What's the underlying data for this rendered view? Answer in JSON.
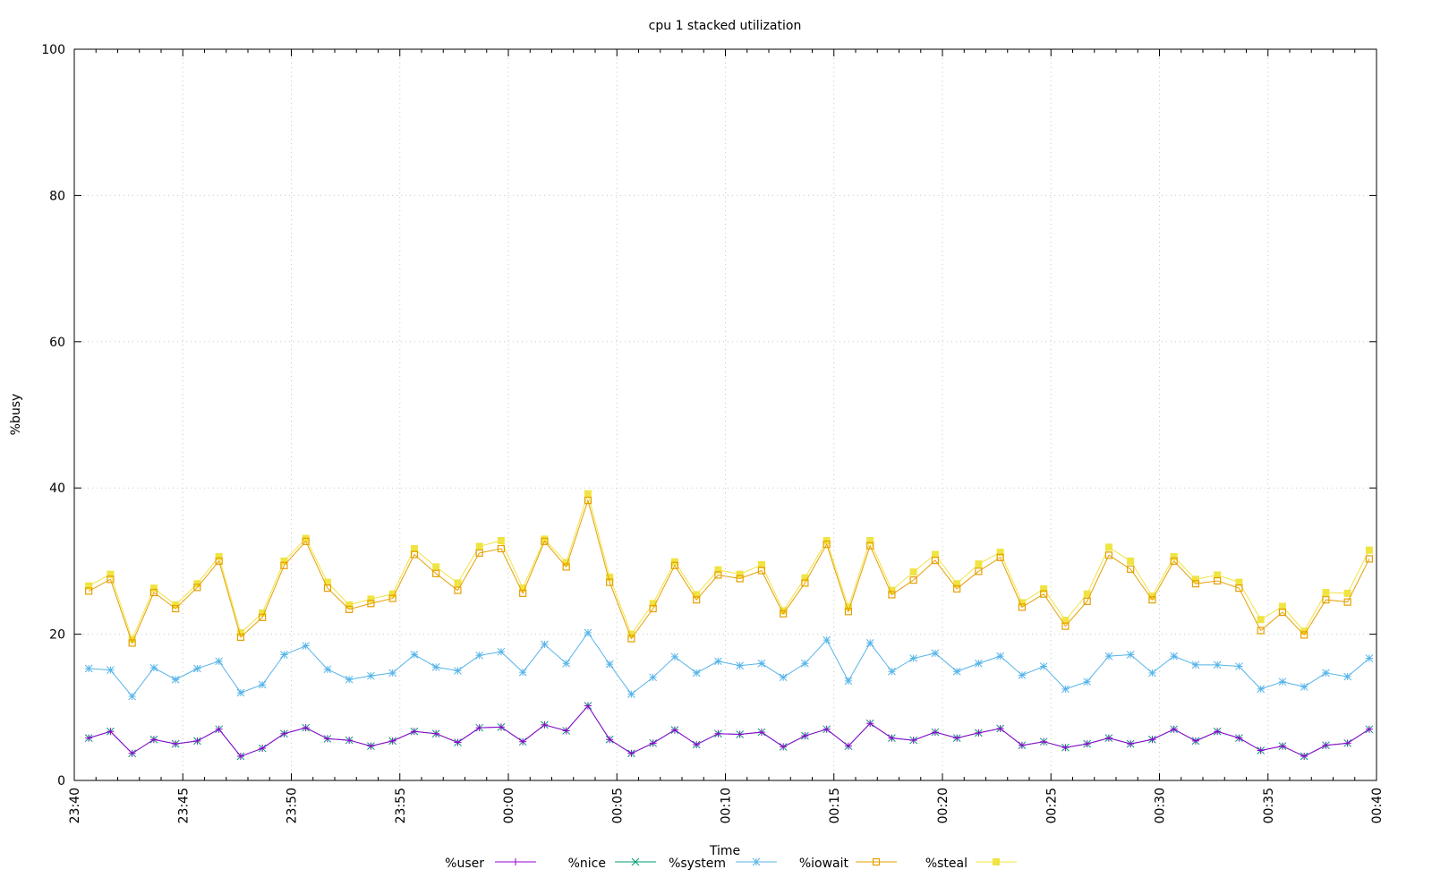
{
  "chart_data": {
    "type": "line",
    "title": "cpu 1 stacked utilization",
    "xlabel": "Time",
    "ylabel": "%busy",
    "ylim": [
      0,
      100
    ],
    "yticks": [
      "0",
      "20",
      "40",
      "60",
      "80",
      "100"
    ],
    "xlim_minutes": [
      0,
      60
    ],
    "xticks": [
      "23:40",
      "23:45",
      "23:50",
      "23:55",
      "00:00",
      "00:05",
      "00:10",
      "00:15",
      "00:20",
      "00:25",
      "00:30",
      "00:35",
      "00:40"
    ],
    "x_start": "23:40:40",
    "x_step_minutes": 1,
    "grid": true,
    "legend_position": "bottom",
    "stacked": true,
    "series": [
      {
        "name": "%user",
        "color": "#9400d3",
        "marker": "plus",
        "values": [
          5.8,
          6.7,
          3.7,
          5.6,
          5.0,
          5.4,
          7.0,
          3.3,
          4.4,
          6.4,
          7.2,
          5.7,
          5.5,
          4.7,
          5.4,
          6.7,
          6.4,
          5.2,
          7.2,
          7.3,
          5.3,
          7.6,
          6.8,
          10.2,
          5.6,
          3.7,
          5.1,
          6.9,
          4.9,
          6.4,
          6.3,
          6.6,
          4.6,
          6.1,
          7.0,
          4.7,
          7.8,
          5.8,
          5.5,
          6.6,
          5.8,
          6.5,
          7.1,
          4.8,
          5.3,
          4.5,
          5.0,
          5.8,
          5.0,
          5.6,
          7.0,
          5.4,
          6.7,
          5.8,
          4.1,
          4.7,
          3.3,
          4.8,
          5.1,
          7.0
        ]
      },
      {
        "name": "%nice",
        "color": "#009e73",
        "marker": "cross",
        "values": [
          5.8,
          6.7,
          3.7,
          5.6,
          5.0,
          5.4,
          7.0,
          3.3,
          4.4,
          6.4,
          7.2,
          5.7,
          5.5,
          4.7,
          5.4,
          6.7,
          6.4,
          5.2,
          7.2,
          7.3,
          5.3,
          7.6,
          6.8,
          10.2,
          5.6,
          3.7,
          5.1,
          6.9,
          4.9,
          6.4,
          6.3,
          6.6,
          4.6,
          6.1,
          7.0,
          4.7,
          7.8,
          5.8,
          5.5,
          6.6,
          5.8,
          6.5,
          7.1,
          4.8,
          5.3,
          4.5,
          5.0,
          5.8,
          5.0,
          5.6,
          7.0,
          5.4,
          6.7,
          5.8,
          4.1,
          4.7,
          3.3,
          4.8,
          5.1,
          7.0
        ]
      },
      {
        "name": "%system",
        "color": "#56b4e9",
        "marker": "star",
        "values": [
          15.3,
          15.1,
          11.5,
          15.4,
          13.8,
          15.3,
          16.3,
          12.0,
          13.1,
          17.2,
          18.4,
          15.2,
          13.8,
          14.3,
          14.7,
          17.2,
          15.5,
          15.0,
          17.1,
          17.6,
          14.8,
          18.6,
          16.0,
          20.2,
          15.9,
          11.8,
          14.1,
          16.9,
          14.7,
          16.3,
          15.7,
          16.0,
          14.1,
          16.0,
          19.2,
          13.6,
          18.8,
          14.9,
          16.7,
          17.4,
          14.9,
          16.0,
          17.0,
          14.4,
          15.6,
          12.5,
          13.5,
          17.0,
          17.2,
          14.7,
          17.0,
          15.8,
          15.8,
          15.6,
          12.5,
          13.5,
          12.8,
          14.7,
          14.2,
          16.7
        ]
      },
      {
        "name": "%iowait",
        "color": "#e69f00",
        "marker": "open-square",
        "values": [
          25.9,
          27.5,
          18.8,
          25.7,
          23.5,
          26.4,
          30.0,
          19.6,
          22.3,
          29.4,
          32.7,
          26.3,
          23.4,
          24.2,
          24.9,
          30.9,
          28.3,
          26.0,
          31.1,
          31.7,
          25.6,
          32.7,
          29.2,
          38.3,
          27.1,
          19.4,
          23.5,
          29.4,
          24.7,
          28.1,
          27.6,
          28.7,
          22.8,
          27.0,
          32.3,
          23.1,
          32.1,
          25.4,
          27.4,
          30.1,
          26.2,
          28.6,
          30.5,
          23.7,
          25.5,
          21.1,
          24.5,
          30.8,
          28.9,
          24.7,
          30.0,
          26.9,
          27.3,
          26.3,
          20.5,
          23.0,
          19.9,
          24.7,
          24.4,
          30.3
        ]
      },
      {
        "name": "%steal",
        "color": "#f0e442",
        "marker": "filled-square",
        "values": [
          26.6,
          28.2,
          19.3,
          26.3,
          24.0,
          26.9,
          30.6,
          20.2,
          22.9,
          30.0,
          33.1,
          27.1,
          24.0,
          24.8,
          25.5,
          31.7,
          29.2,
          27.0,
          32.0,
          32.8,
          26.3,
          33.0,
          29.8,
          39.2,
          27.8,
          20.0,
          24.2,
          29.9,
          25.4,
          28.8,
          28.2,
          29.5,
          23.2,
          27.7,
          32.8,
          23.7,
          32.8,
          26.0,
          28.5,
          30.9,
          26.9,
          29.6,
          31.2,
          24.3,
          26.2,
          21.9,
          25.5,
          31.9,
          30.0,
          25.2,
          30.6,
          27.5,
          28.1,
          27.1,
          22.0,
          23.8,
          20.4,
          25.7,
          25.6,
          31.5
        ]
      }
    ]
  }
}
